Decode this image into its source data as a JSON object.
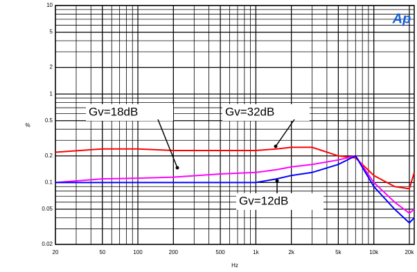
{
  "chart_data": {
    "type": "line",
    "x_label": "Hz",
    "y_label": "%",
    "logo": "Ap",
    "annotations": [
      "Gv=18dB",
      "Gv=32dB",
      "Gv=12dB"
    ],
    "x": [
      20,
      50,
      100,
      200,
      500,
      1000,
      1500,
      2000,
      3000,
      5000,
      7000,
      10000,
      15000,
      20000,
      22000
    ],
    "series": [
      {
        "name": "Gv=32dB",
        "color": "#ff0000",
        "values": [
          0.22,
          0.24,
          0.24,
          0.23,
          0.23,
          0.23,
          0.24,
          0.25,
          0.25,
          0.2,
          0.19,
          0.12,
          0.09,
          0.085,
          0.13
        ]
      },
      {
        "name": "Gv=18dB",
        "color": "#ff00ff",
        "values": [
          0.1,
          0.11,
          0.112,
          0.115,
          0.125,
          0.13,
          0.14,
          0.15,
          0.16,
          0.18,
          0.2,
          0.1,
          0.06,
          0.045,
          0.05
        ]
      },
      {
        "name": "Gv=12dB",
        "color": "#0000ff",
        "values": [
          0.1,
          0.1,
          0.1,
          0.1,
          0.1,
          0.1,
          0.11,
          0.12,
          0.13,
          0.16,
          0.2,
          0.09,
          0.05,
          0.035,
          0.04
        ]
      }
    ],
    "xlim": [
      20,
      22000
    ],
    "ylim": [
      0.02,
      10
    ],
    "log_x": true,
    "log_y": true,
    "grid": true,
    "xticks": [
      20,
      50,
      100,
      200,
      500,
      {
        "value": 1000,
        "label": "1k"
      },
      {
        "value": 2000,
        "label": "2k"
      },
      {
        "value": 5000,
        "label": "5k"
      },
      {
        "value": 10000,
        "label": "10k"
      },
      {
        "value": 20000,
        "label": "20k"
      }
    ],
    "yticks": [
      0.02,
      0.05,
      0.1,
      0.2,
      0.5,
      1,
      2,
      5,
      10
    ]
  }
}
